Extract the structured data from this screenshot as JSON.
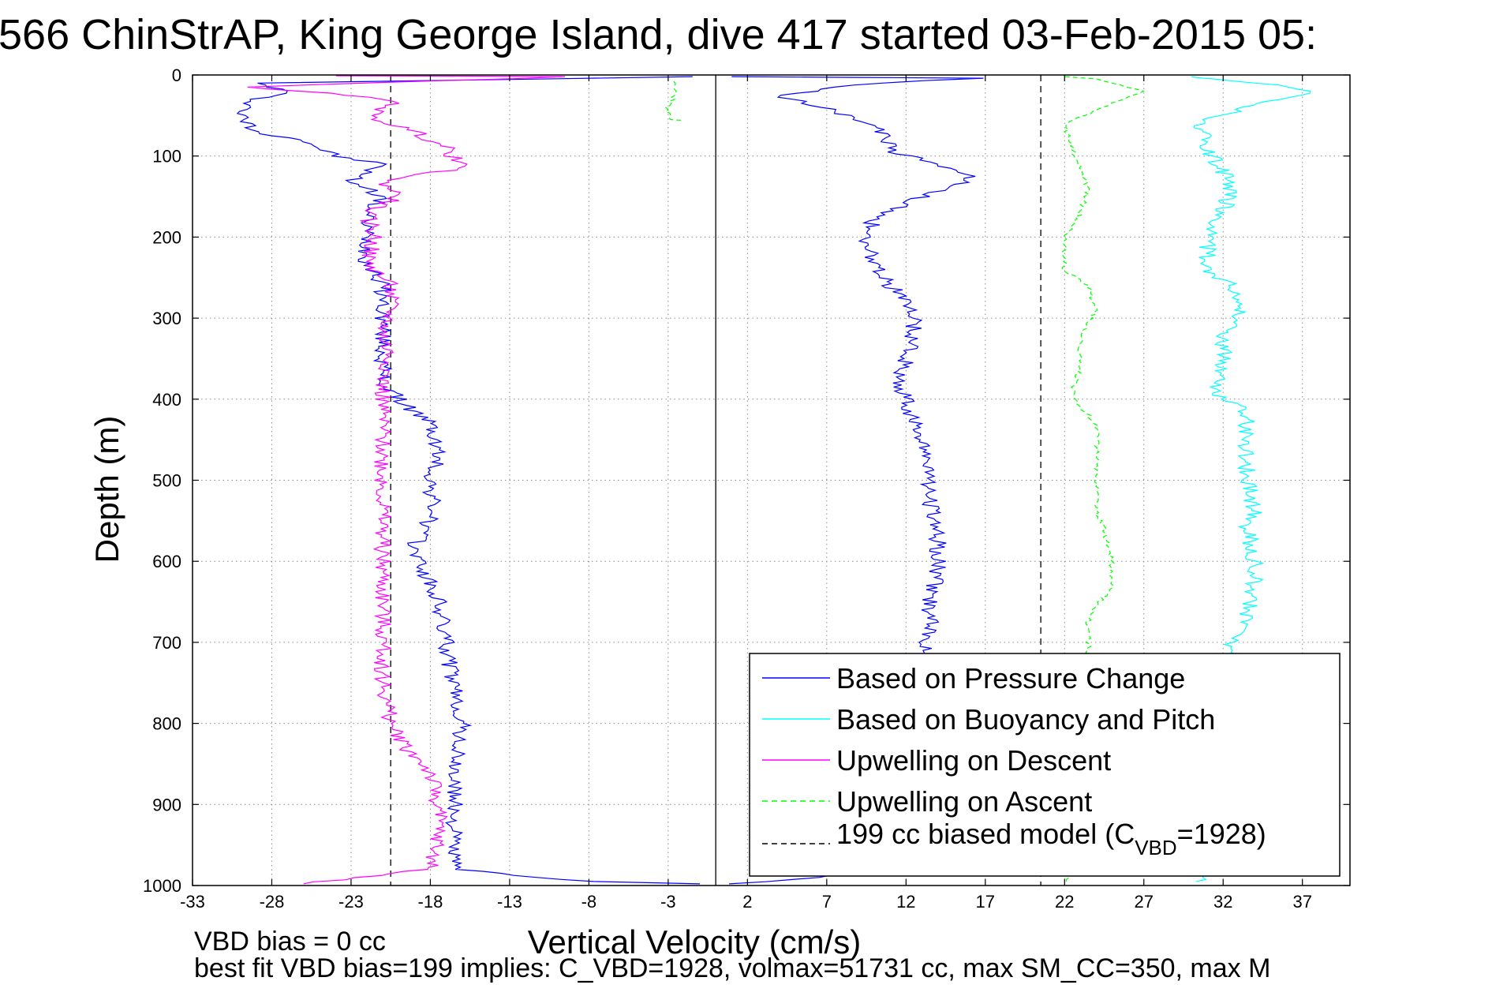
{
  "title": "566 ChinStrAP, King George Island, dive 417 started 03-Feb-2015 05:",
  "footer": {
    "line1": "VBD bias = 0 cc",
    "line2": "best fit VBD bias=199 implies: C_VBD=1928, volmax=51731 cc, max SM_CC=350, max M"
  },
  "legend": {
    "items": [
      {
        "label": "Based on Pressure Change",
        "color": "#0000ff",
        "dash": "solid"
      },
      {
        "label": "Based on Buoyancy and Pitch",
        "color": "#00ffff",
        "dash": "solid"
      },
      {
        "label": "Upwelling on Descent",
        "color": "#ff00ff",
        "dash": "solid"
      },
      {
        "label": "Upwelling on Ascent",
        "color": "#00ff00",
        "dash": "dashed"
      }
    ],
    "model": {
      "prefix": "199 cc biased model (C",
      "sub": "VBD",
      "suffix": "=1928)",
      "color": "#000000",
      "dash": "dashed"
    }
  },
  "chart_data": {
    "type": "line",
    "xlabel": "Vertical Velocity (cm/s)",
    "ylabel": "Depth (m)",
    "xlim": [
      -33,
      40
    ],
    "ylim": [
      1000,
      0
    ],
    "xticks": [
      -33,
      -28,
      -23,
      -18,
      -13,
      -8,
      -3,
      2,
      7,
      12,
      17,
      22,
      27,
      32,
      37
    ],
    "yticks": [
      0,
      100,
      200,
      300,
      400,
      500,
      600,
      700,
      800,
      900,
      1000
    ],
    "grid": true,
    "legend_position": "bottom-right",
    "reference_lines": [
      {
        "x": 0,
        "style": "solid",
        "color": "#000000"
      },
      {
        "x": -20.5,
        "style": "dashed",
        "color": "#000000"
      },
      {
        "x": 20.5,
        "style": "dashed",
        "color": "#000000"
      }
    ],
    "series": [
      {
        "name": "Based on Pressure Change",
        "color": "#0000ff",
        "dash": "solid",
        "profiles": [
          {
            "phase": "descent",
            "points": [
              [
                -1,
                2
              ],
              [
                -29,
                10
              ],
              [
                -27,
                20
              ],
              [
                -29,
                30
              ],
              [
                -30,
                50
              ],
              [
                -29,
                70
              ],
              [
                -26,
                80
              ],
              [
                -24,
                100
              ],
              [
                -21,
                110
              ],
              [
                -23,
                130
              ],
              [
                -21,
                150
              ],
              [
                -22,
                170
              ],
              [
                -22,
                200
              ],
              [
                -22,
                230
              ],
              [
                -21,
                260
              ],
              [
                -21,
                290
              ],
              [
                -21,
                320
              ],
              [
                -21,
                350
              ],
              [
                -21,
                380
              ],
              [
                -20,
                400
              ],
              [
                -18,
                430
              ],
              [
                -17.5,
                470
              ],
              [
                -18,
                500
              ],
              [
                -17.8,
                540
              ],
              [
                -19,
                580
              ],
              [
                -18.5,
                610
              ],
              [
                -17.5,
                650
              ],
              [
                -17,
                700
              ],
              [
                -16.5,
                760
              ],
              [
                -16,
                800
              ],
              [
                -16.5,
                850
              ],
              [
                -16.5,
                900
              ],
              [
                -16.5,
                950
              ],
              [
                -16.5,
                980
              ],
              [
                -8,
                995
              ],
              [
                -1,
                998
              ]
            ]
          },
          {
            "phase": "ascent",
            "points": [
              [
                1,
                998
              ],
              [
                7,
                990
              ],
              [
                13,
                960
              ],
              [
                13,
                920
              ],
              [
                13,
                880
              ],
              [
                13,
                840
              ],
              [
                13,
                800
              ],
              [
                13,
                760
              ],
              [
                13,
                720
              ],
              [
                13.5,
                680
              ],
              [
                13.5,
                650
              ],
              [
                14,
                610
              ],
              [
                14,
                570
              ],
              [
                13.5,
                530
              ],
              [
                13.5,
                500
              ],
              [
                13,
                460
              ],
              [
                12.5,
                430
              ],
              [
                12,
                400
              ],
              [
                11.5,
                380
              ],
              [
                12,
                350
              ],
              [
                12.5,
                320
              ],
              [
                12.5,
                290
              ],
              [
                11,
                260
              ],
              [
                10,
                230
              ],
              [
                9.5,
                200
              ],
              [
                10,
                175
              ],
              [
                13,
                150
              ],
              [
                16.5,
                125
              ],
              [
                14,
                110
              ],
              [
                11,
                95
              ],
              [
                10.5,
                70
              ],
              [
                7.5,
                45
              ],
              [
                4,
                25
              ],
              [
                10,
                10
              ],
              [
                17,
                4
              ],
              [
                1,
                2
              ]
            ]
          }
        ]
      },
      {
        "name": "Based on Buoyancy and Pitch",
        "color": "#00ffff",
        "dash": "solid",
        "profiles": [
          {
            "phase": "ascent",
            "points": [
              [
                30.5,
                995
              ],
              [
                33,
                960
              ],
              [
                33.5,
                920
              ],
              [
                33,
                880
              ],
              [
                32.5,
                840
              ],
              [
                32.5,
                800
              ],
              [
                32.5,
                760
              ],
              [
                32.5,
                720
              ],
              [
                32.5,
                700
              ],
              [
                33.5,
                670
              ],
              [
                34,
                630
              ],
              [
                34,
                600
              ],
              [
                33.5,
                560
              ],
              [
                34,
                540
              ],
              [
                33.5,
                500
              ],
              [
                33.5,
                460
              ],
              [
                33.5,
                430
              ],
              [
                33,
                410
              ],
              [
                31.5,
                390
              ],
              [
                32,
                360
              ],
              [
                32,
                320
              ],
              [
                33,
                290
              ],
              [
                32.5,
                260
              ],
              [
                31,
                240
              ],
              [
                31,
                200
              ],
              [
                32,
                170
              ],
              [
                32.5,
                140
              ],
              [
                32,
                120
              ],
              [
                31,
                90
              ],
              [
                30.5,
                60
              ],
              [
                34,
                35
              ],
              [
                38,
                20
              ],
              [
                32,
                5
              ],
              [
                30,
                2
              ]
            ]
          }
        ]
      },
      {
        "name": "Upwelling on Descent",
        "color": "#ff00ff",
        "dash": "solid",
        "profiles": [
          {
            "phase": "descent",
            "points": [
              [
                -24,
                1
              ],
              [
                -9,
                2
              ],
              [
                -30,
                15
              ],
              [
                -23,
                25
              ],
              [
                -20,
                35
              ],
              [
                -22,
                50
              ],
              [
                -19,
                70
              ],
              [
                -17,
                90
              ],
              [
                -16,
                115
              ],
              [
                -21,
                130
              ],
              [
                -20,
                150
              ],
              [
                -22,
                170
              ],
              [
                -21.5,
                200
              ],
              [
                -22,
                230
              ],
              [
                -20.5,
                260
              ],
              [
                -20.5,
                290
              ],
              [
                -21,
                320
              ],
              [
                -20.5,
                350
              ],
              [
                -21,
                380
              ],
              [
                -21,
                410
              ],
              [
                -21,
                450
              ],
              [
                -21,
                500
              ],
              [
                -21,
                550
              ],
              [
                -21,
                600
              ],
              [
                -21,
                650
              ],
              [
                -21,
                700
              ],
              [
                -21,
                750
              ],
              [
                -20.5,
                800
              ],
              [
                -19.5,
                830
              ],
              [
                -18,
                860
              ],
              [
                -17.5,
                900
              ],
              [
                -17.5,
                940
              ],
              [
                -18,
                980
              ],
              [
                -26,
                998
              ]
            ]
          }
        ]
      },
      {
        "name": "Upwelling on Ascent",
        "color": "#00ff00",
        "dash": "dashed",
        "profiles": [
          {
            "phase": "ascent",
            "points": [
              [
                22,
                995
              ],
              [
                23.5,
                960
              ],
              [
                23.5,
                920
              ],
              [
                23.5,
                880
              ],
              [
                23.5,
                840
              ],
              [
                23.5,
                800
              ],
              [
                23.5,
                760
              ],
              [
                23.5,
                720
              ],
              [
                23.5,
                700
              ],
              [
                23.5,
                670
              ],
              [
                25,
                630
              ],
              [
                25,
                600
              ],
              [
                24.5,
                560
              ],
              [
                24,
                540
              ],
              [
                24,
                500
              ],
              [
                24,
                460
              ],
              [
                24,
                430
              ],
              [
                23,
                410
              ],
              [
                22.5,
                390
              ],
              [
                23,
                360
              ],
              [
                23,
                320
              ],
              [
                24,
                290
              ],
              [
                23.5,
                260
              ],
              [
                22,
                240
              ],
              [
                22,
                200
              ],
              [
                23,
                170
              ],
              [
                23.5,
                140
              ],
              [
                23,
                120
              ],
              [
                22.5,
                90
              ],
              [
                22,
                60
              ],
              [
                25,
                35
              ],
              [
                27,
                20
              ],
              [
                24,
                5
              ],
              [
                22,
                2
              ]
            ]
          },
          {
            "phase": "start",
            "points": [
              [
                -2.5,
                8
              ],
              [
                -2.5,
                20
              ],
              [
                -3,
                40
              ],
              [
                -3,
                55
              ],
              [
                -2,
                56
              ]
            ]
          }
        ]
      }
    ]
  }
}
